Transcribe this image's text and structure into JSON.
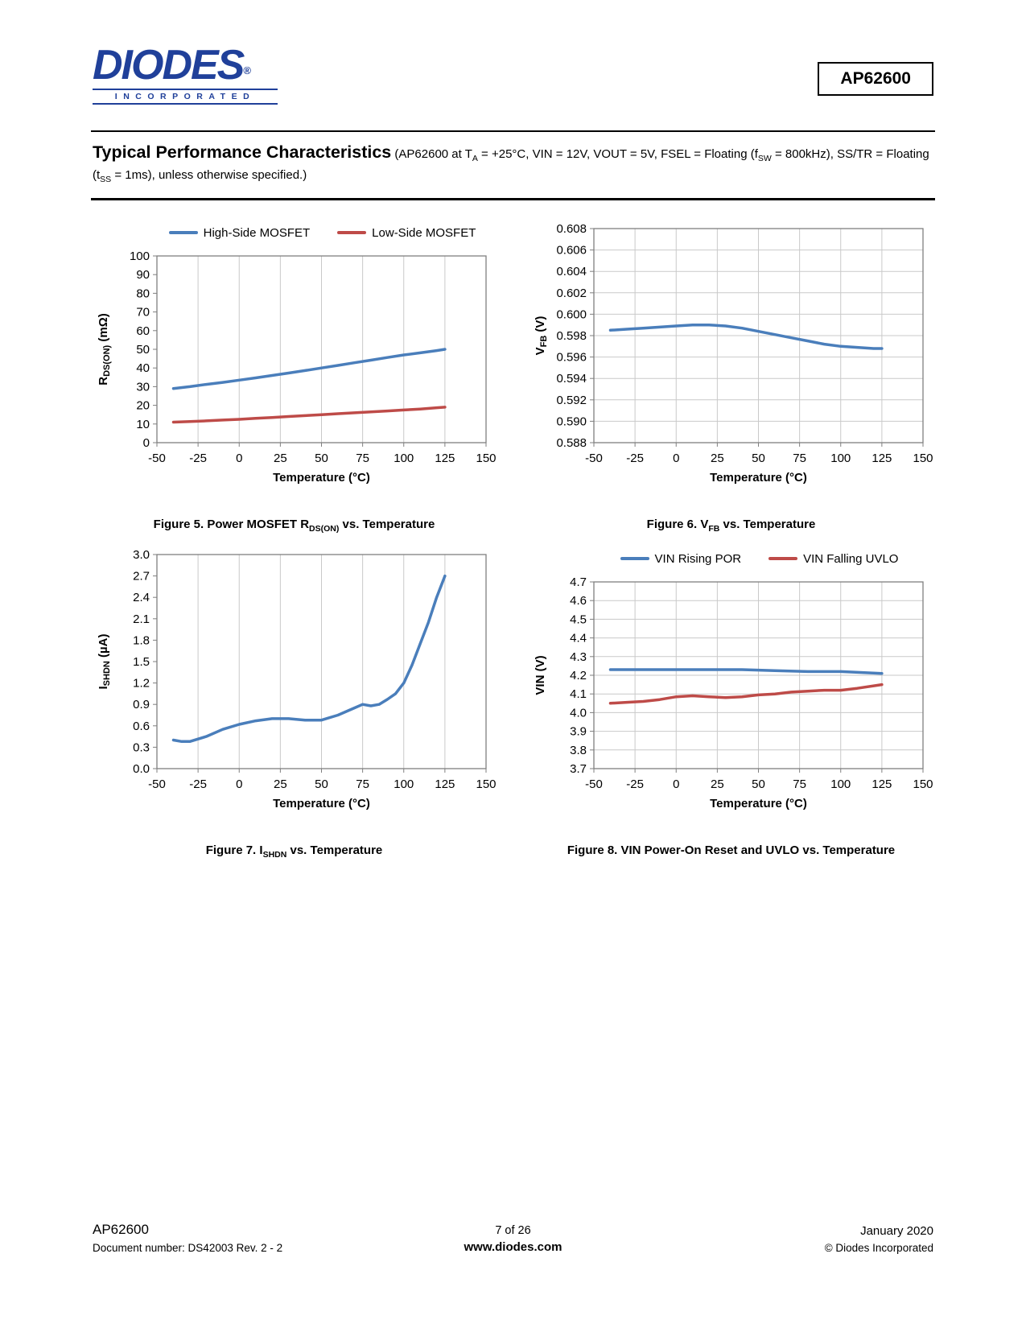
{
  "header": {
    "logo_brand": "DIODES",
    "logo_reg": "®",
    "logo_sub": "INCORPORATED",
    "part_number": "AP62600"
  },
  "title_block": {
    "title": "Typical Performance Characteristics",
    "subtitle": " (AP62600 at T~A~ = +25°C, VIN = 12V, VOUT = 5V, FSEL = Floating (f~SW~ = 800kHz), SS/TR = Floating (t~SS~ = 1ms), unless otherwise specified.)"
  },
  "chart_data": [
    {
      "id": "figure-5",
      "type": "line",
      "caption": "Figure 5. Power MOSFET R~DS(ON)~ vs. Temperature",
      "xlabel": "Temperature (°C)",
      "ylabel": "R~DS(ON)~ (mΩ)",
      "xlim": [
        -50,
        150
      ],
      "xticks": [
        -50,
        -25,
        0,
        25,
        50,
        75,
        100,
        125,
        150
      ],
      "yticks": [
        "0",
        "10",
        "20",
        "30",
        "40",
        "50",
        "60",
        "70",
        "80",
        "90",
        "100"
      ],
      "grid": {
        "v": true,
        "h": false
      },
      "legend": {
        "show": true,
        "position": "top"
      },
      "series": [
        {
          "name": "High-Side MOSFET",
          "color": "#4a7ebb",
          "x": [
            -40,
            -30,
            -20,
            -10,
            0,
            10,
            20,
            30,
            40,
            50,
            60,
            70,
            80,
            90,
            100,
            110,
            120,
            125
          ],
          "y": [
            29,
            30,
            31.2,
            32.3,
            33.5,
            34.7,
            36,
            37.3,
            38.6,
            40,
            41.4,
            42.8,
            44.2,
            45.6,
            47,
            48.1,
            49.3,
            50
          ]
        },
        {
          "name": "Low-Side MOSFET",
          "color": "#be4b48",
          "x": [
            -40,
            -30,
            -20,
            -10,
            0,
            10,
            20,
            30,
            40,
            50,
            60,
            70,
            80,
            90,
            100,
            110,
            120,
            125
          ],
          "y": [
            11,
            11.3,
            11.7,
            12.1,
            12.5,
            13,
            13.5,
            14,
            14.5,
            15,
            15.5,
            16,
            16.5,
            17,
            17.5,
            18,
            18.7,
            19
          ]
        }
      ]
    },
    {
      "id": "figure-6",
      "type": "line",
      "caption": "Figure 6. V~FB~ vs. Temperature",
      "xlabel": "Temperature (°C)",
      "ylabel": "V~FB~ (V)",
      "xlim": [
        -50,
        150
      ],
      "xticks": [
        -50,
        -25,
        0,
        25,
        50,
        75,
        100,
        125,
        150
      ],
      "yticks": [
        "0.588",
        "0.590",
        "0.592",
        "0.594",
        "0.596",
        "0.598",
        "0.600",
        "0.602",
        "0.604",
        "0.606",
        "0.608"
      ],
      "grid": {
        "v": true,
        "h": true
      },
      "legend": {
        "show": false,
        "position": "none"
      },
      "series": [
        {
          "name": "VFB",
          "color": "#4a7ebb",
          "x": [
            -40,
            -30,
            -20,
            -10,
            0,
            10,
            20,
            30,
            40,
            50,
            60,
            70,
            80,
            90,
            100,
            110,
            120,
            125
          ],
          "y": [
            0.5985,
            0.5986,
            0.5987,
            0.5988,
            0.5989,
            0.599,
            0.599,
            0.5989,
            0.5987,
            0.5984,
            0.5981,
            0.5978,
            0.5975,
            0.5972,
            0.597,
            0.5969,
            0.5968,
            0.5968
          ]
        }
      ]
    },
    {
      "id": "figure-7",
      "type": "line",
      "caption": "Figure 7. I~SHDN~ vs. Temperature",
      "xlabel": "Temperature (°C)",
      "ylabel": "I~SHDN~ (µA)",
      "xlim": [
        -50,
        150
      ],
      "xticks": [
        -50,
        -25,
        0,
        25,
        50,
        75,
        100,
        125,
        150
      ],
      "yticks": [
        "0.0",
        "0.3",
        "0.6",
        "0.9",
        "1.2",
        "1.5",
        "1.8",
        "2.1",
        "2.4",
        "2.7",
        "3.0"
      ],
      "grid": {
        "v": true,
        "h": false
      },
      "legend": {
        "show": false,
        "position": "none"
      },
      "series": [
        {
          "name": "ISHDN",
          "color": "#4a7ebb",
          "x": [
            -40,
            -35,
            -30,
            -20,
            -10,
            0,
            10,
            20,
            30,
            40,
            50,
            60,
            70,
            75,
            80,
            85,
            90,
            95,
            100,
            105,
            110,
            115,
            120,
            125
          ],
          "y": [
            0.4,
            0.38,
            0.38,
            0.45,
            0.55,
            0.62,
            0.67,
            0.7,
            0.7,
            0.68,
            0.68,
            0.75,
            0.85,
            0.9,
            0.88,
            0.9,
            0.97,
            1.05,
            1.2,
            1.45,
            1.75,
            2.05,
            2.4,
            2.7
          ]
        }
      ]
    },
    {
      "id": "figure-8",
      "type": "line",
      "caption": "Figure 8. VIN Power-On Reset and UVLO vs. Temperature",
      "xlabel": "Temperature (°C)",
      "ylabel": "VIN (V)",
      "xlim": [
        -50,
        150
      ],
      "xticks": [
        -50,
        -25,
        0,
        25,
        50,
        75,
        100,
        125,
        150
      ],
      "yticks": [
        "3.7",
        "3.8",
        "3.9",
        "4.0",
        "4.1",
        "4.2",
        "4.3",
        "4.4",
        "4.5",
        "4.6",
        "4.7"
      ],
      "grid": {
        "v": true,
        "h": true
      },
      "legend": {
        "show": true,
        "position": "top"
      },
      "series": [
        {
          "name": "VIN Rising POR",
          "color": "#4a7ebb",
          "x": [
            -40,
            -20,
            0,
            20,
            40,
            60,
            80,
            100,
            125
          ],
          "y": [
            4.23,
            4.23,
            4.23,
            4.23,
            4.23,
            4.225,
            4.22,
            4.22,
            4.21
          ]
        },
        {
          "name": "VIN Falling UVLO",
          "color": "#be4b48",
          "x": [
            -40,
            -30,
            -20,
            -10,
            0,
            10,
            20,
            30,
            40,
            50,
            60,
            70,
            80,
            90,
            100,
            110,
            125
          ],
          "y": [
            4.05,
            4.055,
            4.06,
            4.07,
            4.085,
            4.09,
            4.085,
            4.08,
            4.085,
            4.095,
            4.1,
            4.11,
            4.115,
            4.12,
            4.12,
            4.13,
            4.15
          ]
        }
      ]
    }
  ],
  "footer": {
    "part": "AP62600",
    "doc_number": "Document number: DS42003 Rev. 2 - 2",
    "page_info": "7 of 26",
    "website": "www.diodes.com",
    "date": "January 2020",
    "copyright": "© Diodes Incorporated"
  }
}
